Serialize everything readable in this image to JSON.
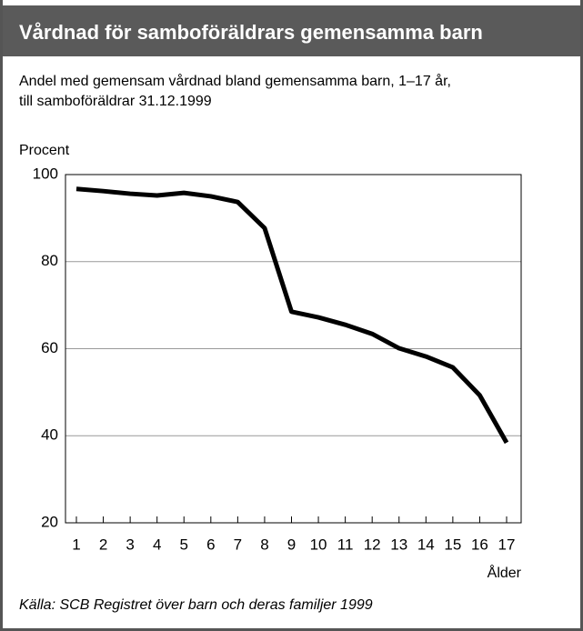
{
  "chart_data": {
    "type": "line",
    "title": "Vårdnad för samboföräldrars gemensamma barn",
    "subtitle": [
      "Andel med gemensam vårdnad bland gemensamma barn, 1–17 år,",
      "till samboföräldrar 31.12.1999"
    ],
    "y_label": "Procent",
    "x_label": "Ålder",
    "source": "Källa: SCB Registret över barn och deras familjer 1999",
    "categories": [
      "1",
      "2",
      "3",
      "4",
      "5",
      "6",
      "7",
      "8",
      "9",
      "10",
      "11",
      "12",
      "13",
      "14",
      "15",
      "16",
      "17"
    ],
    "series": [
      {
        "name": "Andel med gemensam vårdnad",
        "color": "#000000",
        "values": [
          96.7,
          96.2,
          95.6,
          95.2,
          95.8,
          95.0,
          93.7,
          87.7,
          68.5,
          67.2,
          65.5,
          63.4,
          60.1,
          58.2,
          55.7,
          49.3,
          38.4
        ]
      }
    ],
    "ylim": [
      20,
      100
    ],
    "yticks": [
      20,
      40,
      60,
      80,
      100
    ],
    "grid": true
  }
}
